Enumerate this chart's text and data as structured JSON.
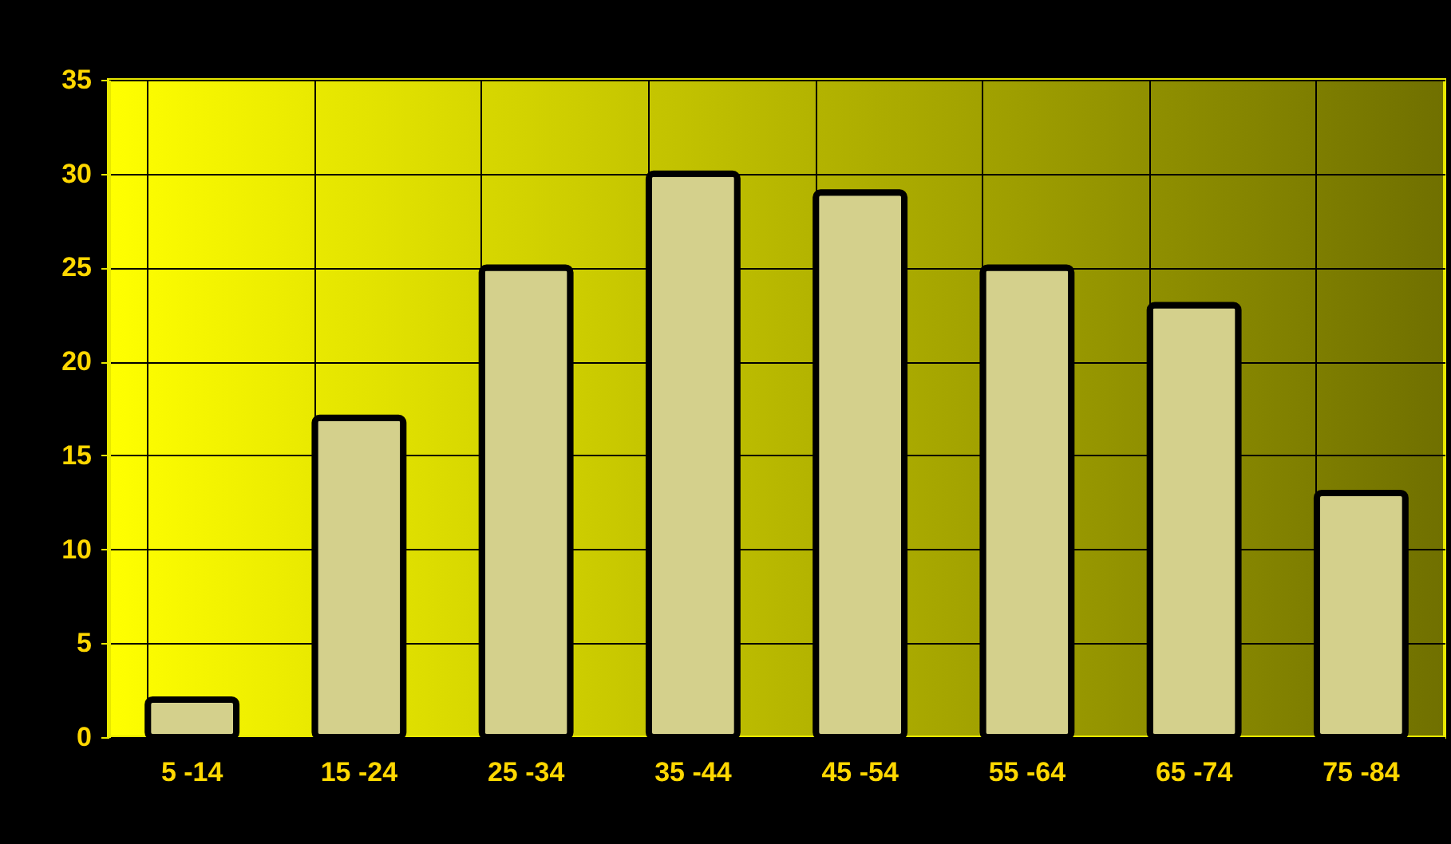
{
  "chart_data": {
    "type": "bar",
    "categories": [
      "5 -14",
      "15 -24",
      "25 -34",
      "35 -44",
      "45 -54",
      "55 -64",
      "65 -74",
      "75 -84"
    ],
    "values": [
      2,
      17,
      25,
      30,
      29,
      25,
      23,
      13
    ],
    "color": "#d4d08c",
    "ylim": [
      0,
      35
    ],
    "yticks": [
      0,
      5,
      10,
      15,
      20,
      25,
      30,
      35
    ],
    "grid": true
  }
}
